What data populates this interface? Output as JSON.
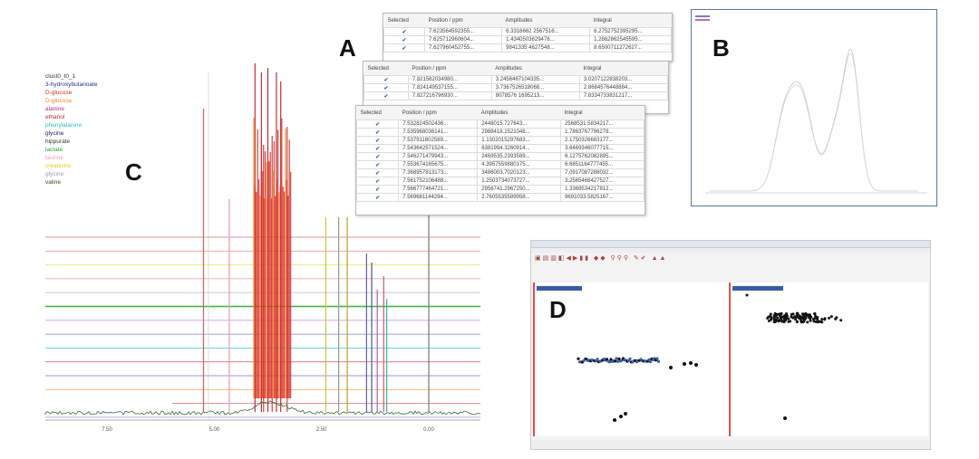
{
  "labels": {
    "a": "A",
    "b": "B",
    "c": "C",
    "d": "D"
  },
  "legend": [
    {
      "text": "clust0_t0_1",
      "color": "#333333"
    },
    {
      "text": "3-hydroxybutanoate",
      "color": "#2b2b8c"
    },
    {
      "text": "D-glucose",
      "color": "#d9302a"
    },
    {
      "text": "D-glucose",
      "color": "#f08a24"
    },
    {
      "text": "alanine",
      "color": "#b0308c"
    },
    {
      "text": "ethanol",
      "color": "#b0303a"
    },
    {
      "text": "phenylalanine",
      "color": "#2fb8b8"
    },
    {
      "text": "glycine",
      "color": "#1a1a5a"
    },
    {
      "text": "hippurate",
      "color": "#333333"
    },
    {
      "text": "lactate",
      "color": "#2f9a3a"
    },
    {
      "text": "taurine",
      "color": "#f0a0b0"
    },
    {
      "text": "creatinine",
      "color": "#e0d020"
    },
    {
      "text": "glycine",
      "color": "#9aa0b0"
    },
    {
      "text": "valine",
      "color": "#4a4a20"
    }
  ],
  "spectrum_axis": {
    "ticks": [
      "7.50",
      "5.00",
      "2.50",
      "0.00"
    ]
  },
  "tables": [
    {
      "headers": [
        "Selected",
        "Position / ppm",
        "Amplitudes",
        "Integral"
      ],
      "rows": [
        [
          "7.623564592355...",
          "6.3316662 2567516...",
          "6.2752752395295..."
        ],
        [
          "7.625712960604...",
          "1.4340503629478...",
          "1.2862862545595..."
        ],
        [
          "7.627960452755...",
          "9841335 4627548...",
          "8.6500711272627..."
        ]
      ]
    },
    {
      "headers": [
        "Selected",
        "Position / ppm",
        "Amplitudes",
        "Integral"
      ],
      "rows": [
        [
          "7.821582034980...",
          "3.2456467104335...",
          "3.0207122838203..."
        ],
        [
          "7.824149537155...",
          "3.7367526518068...",
          "2.8684576448884..."
        ],
        [
          "7.827216796930...",
          "8078576 1695213...",
          "7.8334733831217..."
        ]
      ]
    },
    {
      "headers": [
        "Selected",
        "Position / ppm",
        "Amplitudes",
        "Integral"
      ],
      "rows": [
        [
          "7.532824502436...",
          "2448015.727643...",
          "2568531.5834217..."
        ],
        [
          "7.535968036141...",
          "2988418.1521048...",
          "1.7863767796278..."
        ],
        [
          "7.537911802589...",
          "1.1302015297683...",
          "2.1750326683177..."
        ],
        [
          "7.543642571524...",
          "6381994.3260914...",
          "3.6469346077715..."
        ],
        [
          "7.546271479943...",
          "2469535.2393589...",
          "6.1275762082895..."
        ],
        [
          "7.553674165675...",
          "4.3957559880175...",
          "6.6851164777455..."
        ],
        [
          "7.368957813173...",
          "3486003.7020123...",
          "7.0917087288032..."
        ],
        [
          "7.561752106488...",
          "1.2503734073727...",
          "3.2565468427527..."
        ],
        [
          "7.566777464721...",
          "2956741.2967250...",
          "1.3369534217812..."
        ],
        [
          "7.569681144294...",
          "2.7605535589958...",
          "9691033.5825167..."
        ]
      ]
    }
  ],
  "colors": {
    "accent_red": "#d9302a",
    "selection_blue": "#3a5fb8",
    "frame_blue": "#5577aa"
  }
}
